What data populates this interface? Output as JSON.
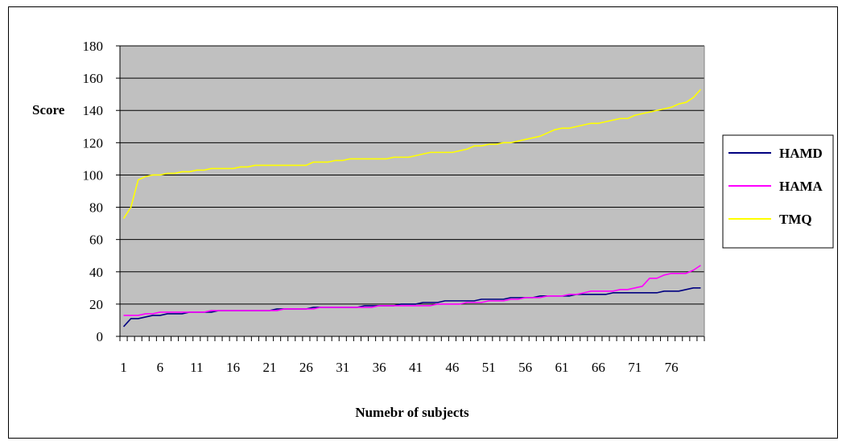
{
  "chart_data": {
    "type": "line",
    "ylabel": "Score",
    "xlabel": "Numebr of subjects",
    "ylim": [
      0,
      180
    ],
    "yticks": [
      0,
      20,
      40,
      60,
      80,
      100,
      120,
      140,
      160,
      180
    ],
    "x_count": 80,
    "xtick_labels": [
      "1",
      "6",
      "11",
      "16",
      "21",
      "26",
      "31",
      "36",
      "41",
      "46",
      "51",
      "56",
      "61",
      "66",
      "71",
      "76"
    ],
    "grid": true,
    "plot_background": "#c0c0c0",
    "legend_position": "right",
    "series": [
      {
        "name": "HAMD",
        "color": "#000080",
        "values": [
          6,
          11,
          11,
          12,
          13,
          13,
          14,
          14,
          14,
          15,
          15,
          15,
          15,
          16,
          16,
          16,
          16,
          16,
          16,
          16,
          16,
          17,
          17,
          17,
          17,
          17,
          18,
          18,
          18,
          18,
          18,
          18,
          18,
          19,
          19,
          19,
          19,
          19,
          20,
          20,
          20,
          21,
          21,
          21,
          22,
          22,
          22,
          22,
          22,
          23,
          23,
          23,
          23,
          24,
          24,
          24,
          24,
          25,
          25,
          25,
          25,
          25,
          26,
          26,
          26,
          26,
          26,
          27,
          27,
          27,
          27,
          27,
          27,
          27,
          28,
          28,
          28,
          29,
          30,
          30
        ]
      },
      {
        "name": "HAMA",
        "color": "#ff00ff",
        "values": [
          13,
          13,
          13,
          14,
          14,
          15,
          15,
          15,
          15,
          15,
          15,
          15,
          16,
          16,
          16,
          16,
          16,
          16,
          16,
          16,
          16,
          16,
          17,
          17,
          17,
          17,
          17,
          18,
          18,
          18,
          18,
          18,
          18,
          18,
          18,
          19,
          19,
          19,
          19,
          19,
          19,
          19,
          19,
          20,
          20,
          20,
          20,
          21,
          21,
          21,
          22,
          22,
          22,
          23,
          23,
          24,
          24,
          24,
          25,
          25,
          25,
          26,
          26,
          27,
          28,
          28,
          28,
          28,
          29,
          29,
          30,
          31,
          36,
          36,
          38,
          39,
          39,
          39,
          41,
          44
        ]
      },
      {
        "name": "TMQ",
        "color": "#ffff00",
        "values": [
          73,
          80,
          97,
          99,
          100,
          100,
          101,
          101,
          102,
          102,
          103,
          103,
          104,
          104,
          104,
          104,
          105,
          105,
          106,
          106,
          106,
          106,
          106,
          106,
          106,
          106,
          108,
          108,
          108,
          109,
          109,
          110,
          110,
          110,
          110,
          110,
          110,
          111,
          111,
          111,
          112,
          113,
          114,
          114,
          114,
          114,
          115,
          116,
          118,
          118,
          119,
          119,
          120,
          120,
          121,
          122,
          123,
          124,
          126,
          128,
          129,
          129,
          130,
          131,
          132,
          132,
          133,
          134,
          135,
          135,
          137,
          138,
          139,
          140,
          141,
          142,
          144,
          145,
          148,
          153
        ]
      }
    ]
  }
}
